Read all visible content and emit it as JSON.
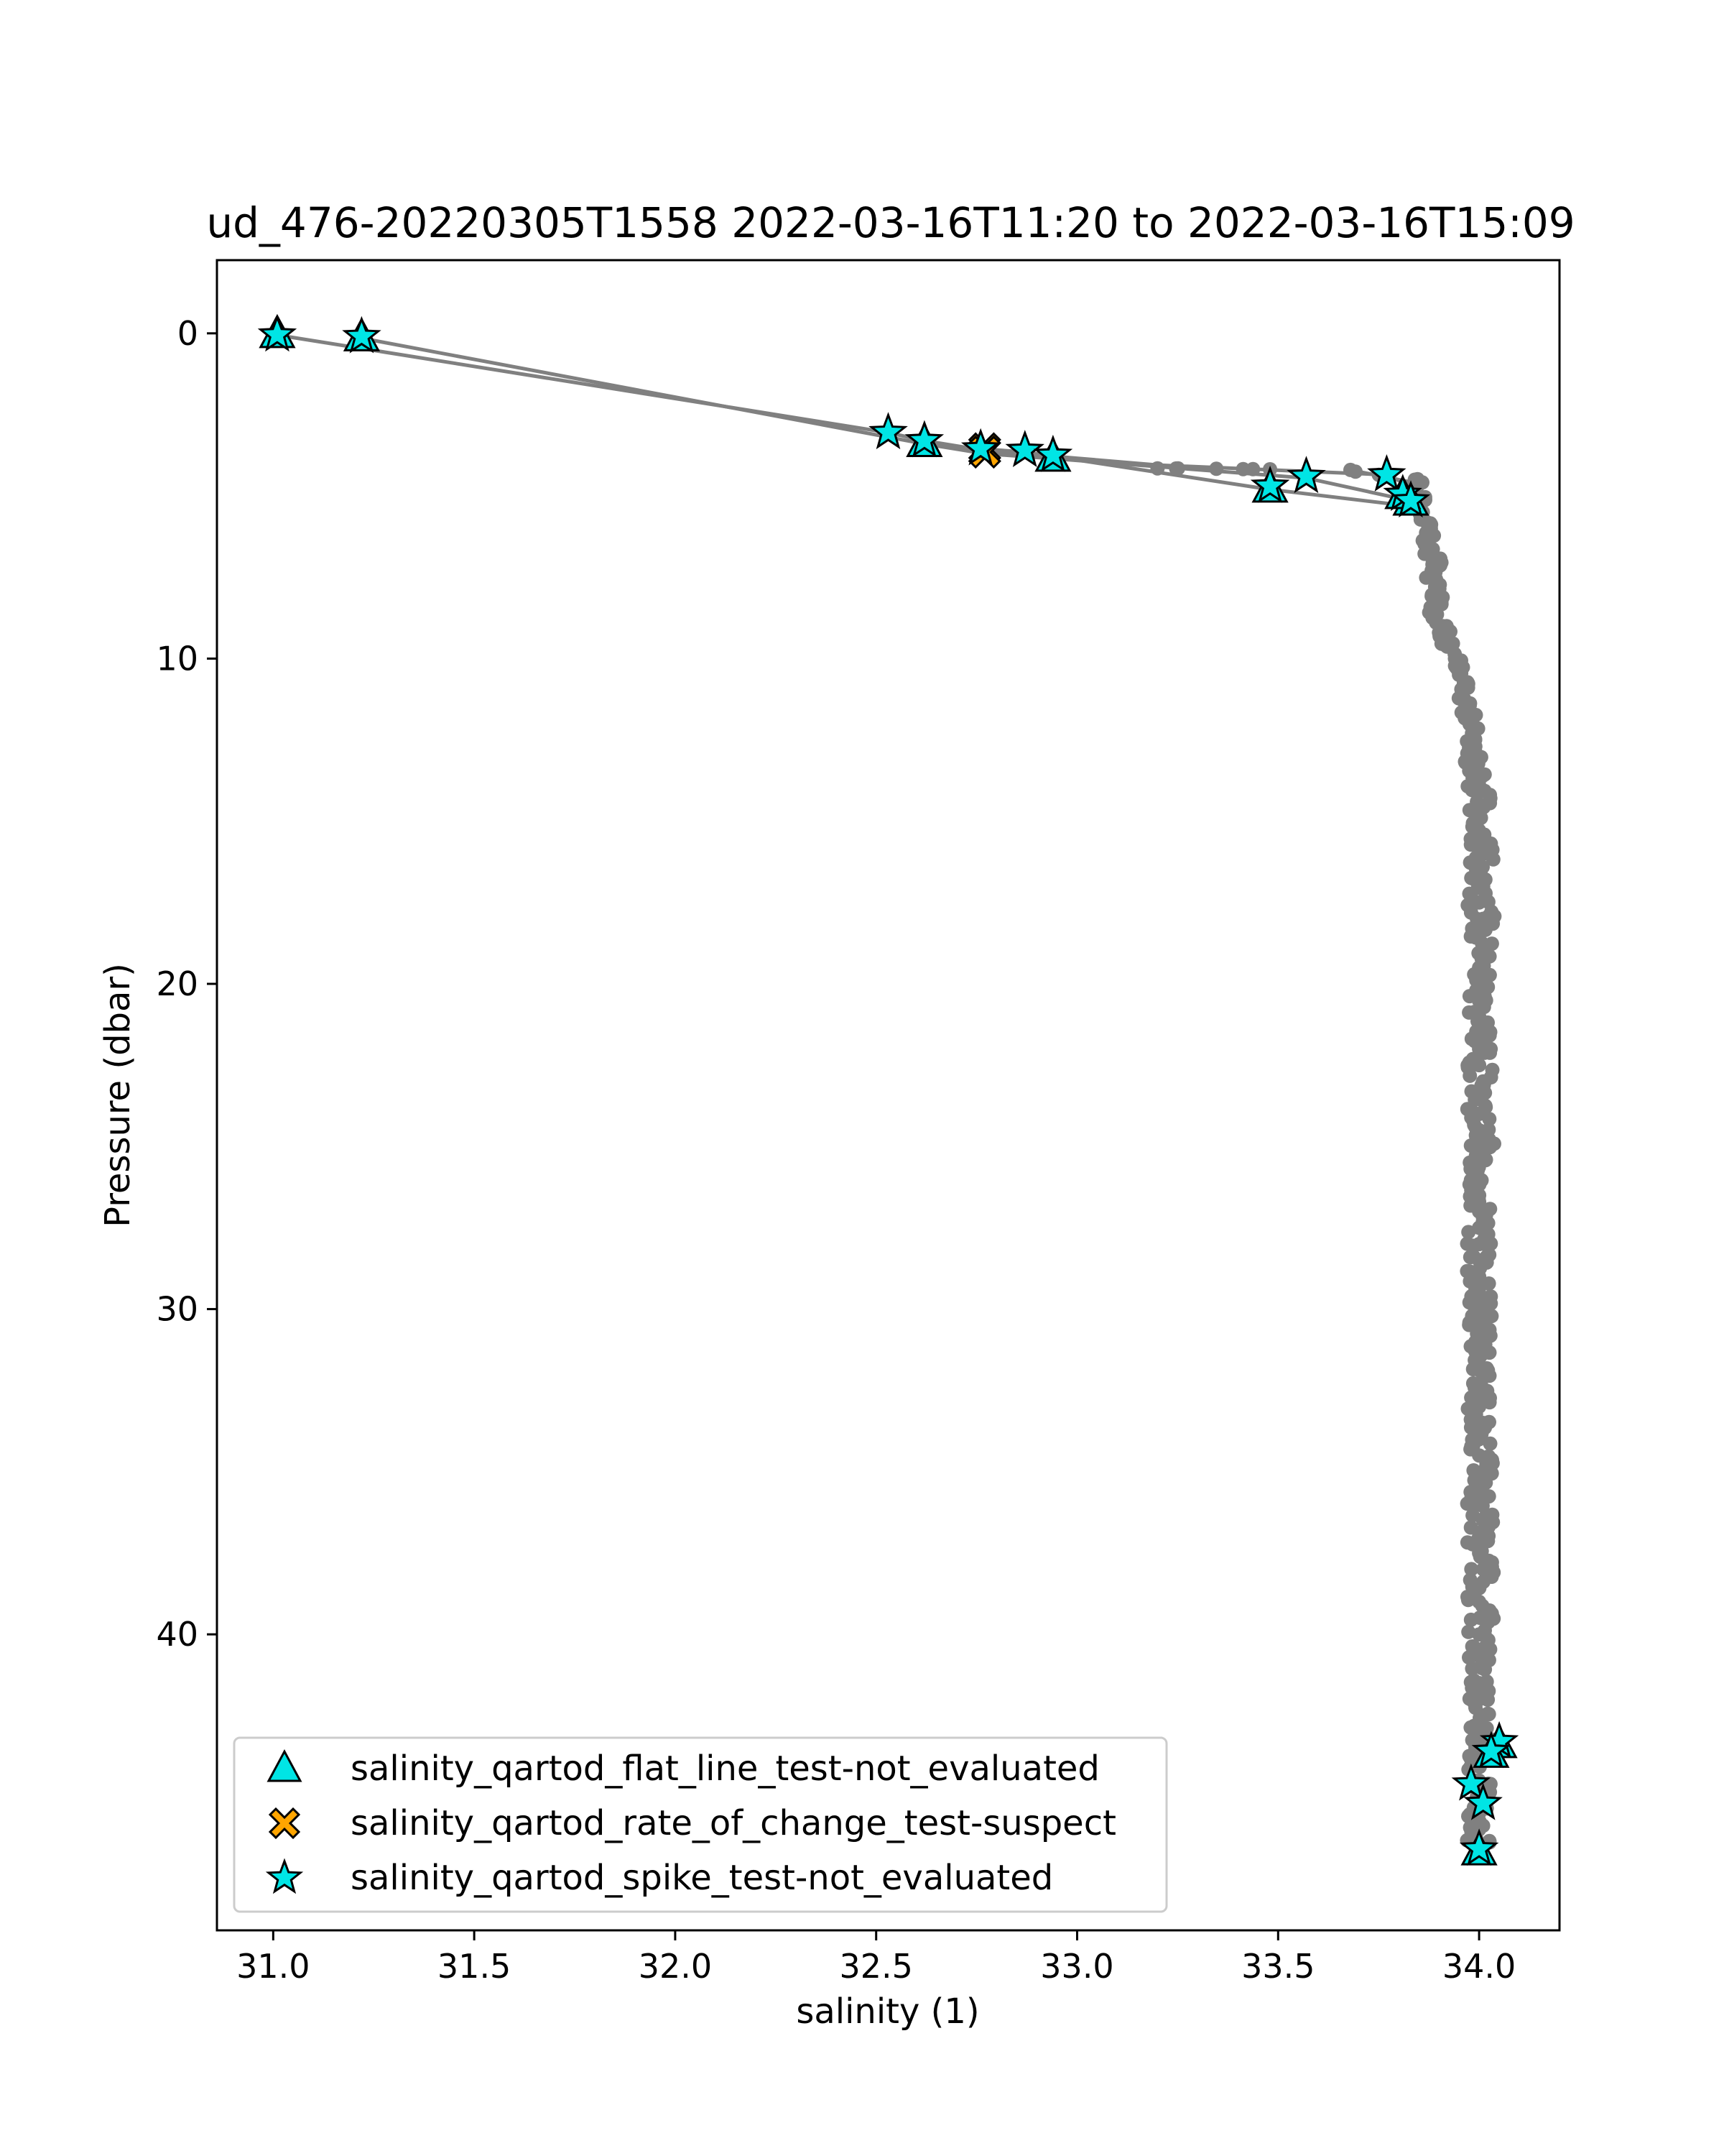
{
  "chart_data": {
    "type": "scatter",
    "title": "ud_476-20220305T1558 2022-03-16T11:20 to 2022-03-16T15:09",
    "xlabel": "salinity (1)",
    "ylabel": "Pressure (dbar)",
    "xlim": [
      30.86,
      34.2
    ],
    "ylim": [
      49.1,
      -2.25
    ],
    "y_inverted": true,
    "grid": false,
    "legend_position": "lower-left",
    "xticks": [
      31.0,
      31.5,
      32.0,
      32.5,
      33.0,
      33.5,
      34.0
    ],
    "xtick_labels": [
      "31.0",
      "31.5",
      "32.0",
      "32.5",
      "33.0",
      "33.5",
      "34.0"
    ],
    "yticks": [
      0,
      10,
      20,
      30,
      40
    ],
    "ytick_labels": [
      "0",
      "10",
      "20",
      "30",
      "40"
    ],
    "profile_color": "#808080",
    "profile_lines": [
      [
        [
          31.01,
          0.05
        ],
        [
          32.53,
          3.05
        ],
        [
          32.62,
          3.3
        ],
        [
          32.77,
          3.6
        ],
        [
          33.2,
          4.05
        ],
        [
          33.77,
          4.35
        ],
        [
          33.83,
          4.7
        ]
      ],
      [
        [
          31.22,
          0.15
        ],
        [
          32.62,
          3.4
        ],
        [
          32.77,
          3.7
        ],
        [
          32.94,
          3.85
        ],
        [
          33.57,
          4.45
        ],
        [
          33.81,
          5.1
        ]
      ],
      [
        [
          32.76,
          3.55
        ],
        [
          32.87,
          3.65
        ],
        [
          33.48,
          4.8
        ],
        [
          33.82,
          5.3
        ]
      ],
      [
        [
          33.68,
          4.2
        ],
        [
          33.84,
          4.6
        ]
      ]
    ],
    "profile_series": {
      "name": "salinity",
      "points": [
        [
          33.2,
          4.15
        ],
        [
          33.68,
          4.2
        ],
        [
          33.84,
          4.5
        ],
        [
          33.85,
          5.0
        ],
        [
          33.86,
          5.5
        ],
        [
          33.88,
          6.0
        ],
        [
          33.87,
          6.5
        ],
        [
          33.89,
          7.0
        ],
        [
          33.88,
          7.5
        ],
        [
          33.9,
          8.0
        ],
        [
          33.89,
          8.5
        ],
        [
          33.91,
          9.0
        ],
        [
          33.92,
          9.5
        ],
        [
          33.94,
          10.0
        ],
        [
          33.95,
          10.5
        ],
        [
          33.96,
          11.0
        ],
        [
          33.97,
          11.5
        ],
        [
          33.98,
          12.0
        ],
        [
          33.99,
          12.5
        ],
        [
          33.99,
          13.0
        ],
        [
          34.0,
          13.5
        ],
        [
          34.0,
          14.0
        ],
        [
          34.0,
          14.5
        ],
        [
          33.99,
          15.0
        ],
        [
          34.0,
          15.5
        ],
        [
          34.01,
          16.0
        ],
        [
          34.0,
          16.5
        ],
        [
          34.01,
          17.0
        ],
        [
          34.0,
          17.5
        ],
        [
          34.01,
          18.0
        ],
        [
          34.0,
          18.5
        ],
        [
          34.01,
          19.0
        ],
        [
          34.0,
          19.5
        ],
        [
          34.01,
          20.0
        ],
        [
          34.0,
          20.5
        ],
        [
          34.0,
          21.0
        ],
        [
          34.01,
          21.5
        ],
        [
          34.0,
          22.0
        ],
        [
          34.0,
          22.5
        ],
        [
          34.01,
          23.0
        ],
        [
          34.0,
          23.5
        ],
        [
          34.0,
          24.0
        ],
        [
          34.0,
          24.5
        ],
        [
          34.01,
          25.0
        ],
        [
          34.0,
          25.5
        ],
        [
          34.0,
          26.0
        ],
        [
          34.0,
          26.5
        ],
        [
          34.0,
          27.0
        ],
        [
          34.0,
          27.5
        ],
        [
          34.0,
          28.0
        ],
        [
          34.0,
          28.5
        ],
        [
          34.0,
          29.0
        ],
        [
          34.0,
          29.5
        ],
        [
          34.01,
          30.0
        ],
        [
          34.0,
          30.5
        ],
        [
          34.0,
          31.0
        ],
        [
          34.0,
          31.5
        ],
        [
          34.01,
          32.0
        ],
        [
          34.0,
          32.5
        ],
        [
          34.0,
          33.0
        ],
        [
          34.01,
          33.5
        ],
        [
          34.0,
          34.0
        ],
        [
          34.0,
          34.5
        ],
        [
          34.01,
          35.0
        ],
        [
          34.0,
          35.5
        ],
        [
          34.0,
          36.0
        ],
        [
          34.01,
          36.5
        ],
        [
          34.0,
          37.0
        ],
        [
          34.0,
          37.5
        ],
        [
          34.01,
          38.0
        ],
        [
          34.0,
          38.5
        ],
        [
          34.0,
          39.0
        ],
        [
          34.01,
          39.5
        ],
        [
          34.0,
          40.0
        ],
        [
          34.0,
          40.5
        ],
        [
          34.01,
          41.0
        ],
        [
          34.0,
          41.5
        ],
        [
          34.0,
          42.0
        ],
        [
          34.01,
          42.5
        ],
        [
          34.0,
          43.0
        ],
        [
          34.01,
          43.5
        ],
        [
          34.0,
          44.0
        ],
        [
          34.0,
          44.5
        ],
        [
          34.01,
          45.0
        ],
        [
          34.0,
          45.5
        ],
        [
          34.0,
          46.0
        ],
        [
          34.0,
          46.5
        ]
      ],
      "spread": [
        0.035,
        0.06
      ],
      "spread_note_visible": false
    },
    "series": [
      {
        "name": "salinity_qartod_flat_line_test-not_evaluated",
        "marker": "triangle",
        "color": "#00e5e5",
        "points": [
          [
            31.01,
            0.05
          ],
          [
            31.22,
            0.15
          ],
          [
            32.62,
            3.4
          ],
          [
            32.94,
            3.85
          ],
          [
            33.48,
            4.8
          ],
          [
            33.83,
            5.2
          ],
          [
            33.81,
            5.0
          ],
          [
            34.05,
            43.4
          ],
          [
            34.03,
            43.7
          ],
          [
            34.0,
            46.7
          ]
        ]
      },
      {
        "name": "salinity_qartod_rate_of_change_test-suspect",
        "marker": "x",
        "color": "#ffa500",
        "points": [
          [
            32.77,
            3.55
          ],
          [
            32.77,
            3.65
          ]
        ]
      },
      {
        "name": "salinity_qartod_spike_test-not_evaluated",
        "marker": "star",
        "color": "#00e5e5",
        "points": [
          [
            31.01,
            0.05
          ],
          [
            31.22,
            0.1
          ],
          [
            32.53,
            3.05
          ],
          [
            32.62,
            3.3
          ],
          [
            32.76,
            3.55
          ],
          [
            32.87,
            3.6
          ],
          [
            32.94,
            3.75
          ],
          [
            33.48,
            4.7
          ],
          [
            33.57,
            4.4
          ],
          [
            33.77,
            4.35
          ],
          [
            33.81,
            4.95
          ],
          [
            33.83,
            5.15
          ],
          [
            34.05,
            43.3
          ],
          [
            34.03,
            43.6
          ],
          [
            33.98,
            44.6
          ],
          [
            34.01,
            45.2
          ],
          [
            34.0,
            46.6
          ]
        ]
      }
    ],
    "legend": {
      "entries": [
        "salinity_qartod_flat_line_test-not_evaluated",
        "salinity_qartod_rate_of_change_test-suspect",
        "salinity_qartod_spike_test-not_evaluated"
      ]
    }
  }
}
